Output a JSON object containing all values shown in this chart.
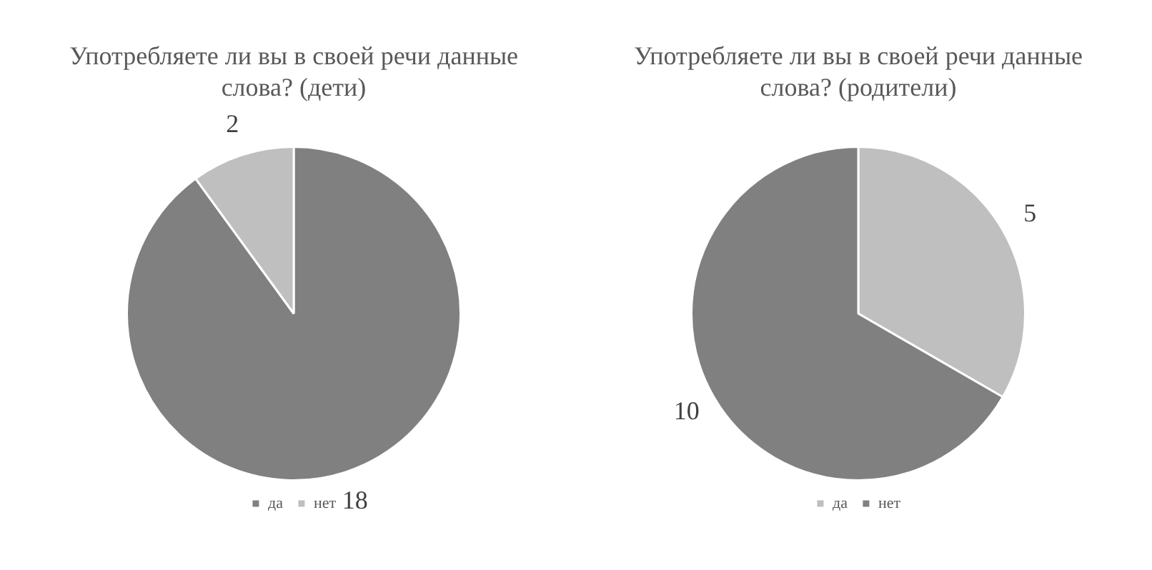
{
  "chart_data": [
    {
      "type": "pie",
      "title": "Употребляете ли вы в своей речи данные слова? (дети)",
      "categories": [
        "да",
        "нет"
      ],
      "values": [
        18,
        2
      ],
      "colors": [
        "#808080",
        "#bfbfbf"
      ],
      "data_labels": true,
      "legend": "bottom"
    },
    {
      "type": "pie",
      "title": "Употребляете ли вы в своей речи данные слова? (родители)",
      "categories": [
        "да",
        "нет"
      ],
      "values": [
        5,
        10
      ],
      "colors": [
        "#bfbfbf",
        "#808080"
      ],
      "data_labels": true,
      "legend": "bottom"
    }
  ]
}
